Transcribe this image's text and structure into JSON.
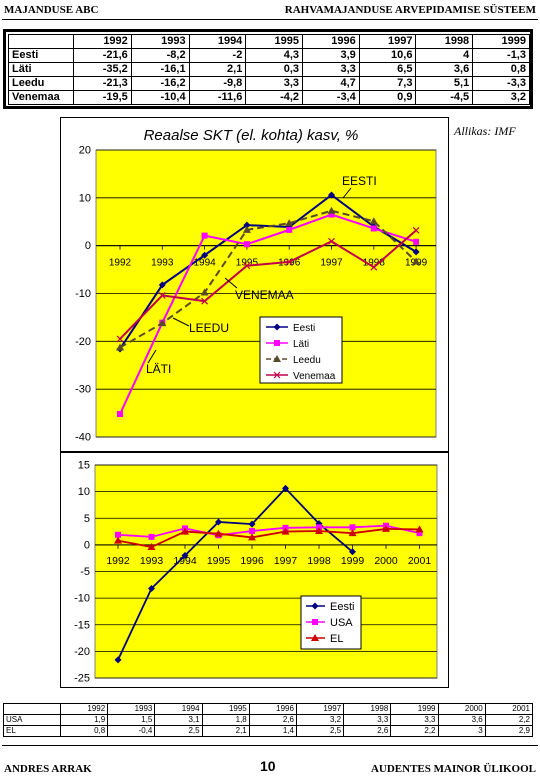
{
  "header": {
    "left": "MAJANDUSE ABC",
    "right": "RAHVAMAJANDUSE ARVEPIDAMISE SÜSTEEM"
  },
  "table1": {
    "years": [
      "1992",
      "1993",
      "1994",
      "1995",
      "1996",
      "1997",
      "1998",
      "1999"
    ],
    "rows": [
      {
        "label": "Eesti",
        "values": [
          "-21,6",
          "-8,2",
          "-2",
          "4,3",
          "3,9",
          "10,6",
          "4",
          "-1,3"
        ]
      },
      {
        "label": "Läti",
        "values": [
          "-35,2",
          "-16,1",
          "2,1",
          "0,3",
          "3,3",
          "6,5",
          "3,6",
          "0,8"
        ]
      },
      {
        "label": "Leedu",
        "values": [
          "-21,3",
          "-16,2",
          "-9,8",
          "3,3",
          "4,7",
          "7,3",
          "5,1",
          "-3,3"
        ]
      },
      {
        "label": "Venemaa",
        "values": [
          "-19,5",
          "-10,4",
          "-11,6",
          "-4,2",
          "-3,4",
          "0,9",
          "-4,5",
          "3,2"
        ]
      }
    ]
  },
  "source_note": "Allikas: IMF",
  "chart_data": [
    {
      "type": "line",
      "title": "Reaalse SKT (el. kohta) kasv, %",
      "x": [
        1992,
        1993,
        1994,
        1995,
        1996,
        1997,
        1998,
        1999
      ],
      "ylim": [
        -40,
        20
      ],
      "yticks": [
        "20",
        "10",
        "0",
        "-10",
        "-20",
        "-30",
        "-40"
      ],
      "grid": true,
      "legend": "right-middle",
      "series": [
        {
          "name": "Eesti",
          "values": [
            -21.6,
            -8.2,
            -2,
            4.3,
            3.9,
            10.6,
            4,
            -1.3
          ],
          "color": "#000080",
          "marker": "diamond"
        },
        {
          "name": "Läti",
          "values": [
            -35.2,
            -16.1,
            2.1,
            0.3,
            3.3,
            6.5,
            3.6,
            0.8
          ],
          "color": "#ff00ff",
          "marker": "square"
        },
        {
          "name": "Leedu",
          "values": [
            -21.3,
            -16.2,
            -9.8,
            3.3,
            4.7,
            7.3,
            5.1,
            -3.3
          ],
          "color": "#5a4a2a",
          "marker": "triangle",
          "dashed": true
        },
        {
          "name": "Venemaa",
          "values": [
            -19.5,
            -10.4,
            -11.6,
            -4.2,
            -3.4,
            0.9,
            -4.5,
            3.2
          ],
          "color": "#c0004c",
          "marker": "cross"
        }
      ],
      "annotations": [
        "EESTI",
        "VENEMAA",
        "LEEDU",
        "LÄTI"
      ]
    },
    {
      "type": "line",
      "title": "",
      "x": [
        1992,
        1993,
        1994,
        1995,
        1996,
        1997,
        1998,
        1999,
        2000,
        2001
      ],
      "ylim": [
        -25,
        15
      ],
      "yticks": [
        "15",
        "10",
        "5",
        "0",
        "-5",
        "-10",
        "-15",
        "-20",
        "-25"
      ],
      "grid": true,
      "legend": "bottom-right",
      "series": [
        {
          "name": "Eesti",
          "values": [
            -21.6,
            -8.2,
            -2,
            4.3,
            3.9,
            10.6,
            4,
            -1.3,
            null,
            null
          ],
          "color": "#000080",
          "marker": "diamond"
        },
        {
          "name": "USA",
          "values": [
            1.9,
            1.5,
            3.1,
            1.8,
            2.6,
            3.2,
            3.3,
            3.3,
            3.6,
            2.2
          ],
          "color": "#ff00ff",
          "marker": "square"
        },
        {
          "name": "EL",
          "values": [
            0.8,
            -0.4,
            2.5,
            2.1,
            1.4,
            2.5,
            2.6,
            2.2,
            3,
            2.9
          ],
          "color": "#cc0000",
          "marker": "triangle"
        }
      ]
    }
  ],
  "table2": {
    "years": [
      "1992",
      "1993",
      "1994",
      "1995",
      "1996",
      "1997",
      "1998",
      "1999",
      "2000",
      "2001"
    ],
    "rows": [
      {
        "label": "USA",
        "values": [
          "1,9",
          "1,5",
          "3,1",
          "1,8",
          "2,6",
          "3,2",
          "3,3",
          "3,3",
          "3,6",
          "2,2"
        ]
      },
      {
        "label": "EL",
        "values": [
          "0,8",
          "-0,4",
          "2,5",
          "2,1",
          "1,4",
          "2,5",
          "2,6",
          "2,2",
          "3",
          "2,9"
        ]
      }
    ]
  },
  "footer": {
    "left": "ANDRES ARRAK",
    "page": "10",
    "right": "AUDENTES MAINOR ÜLIKOOL"
  }
}
